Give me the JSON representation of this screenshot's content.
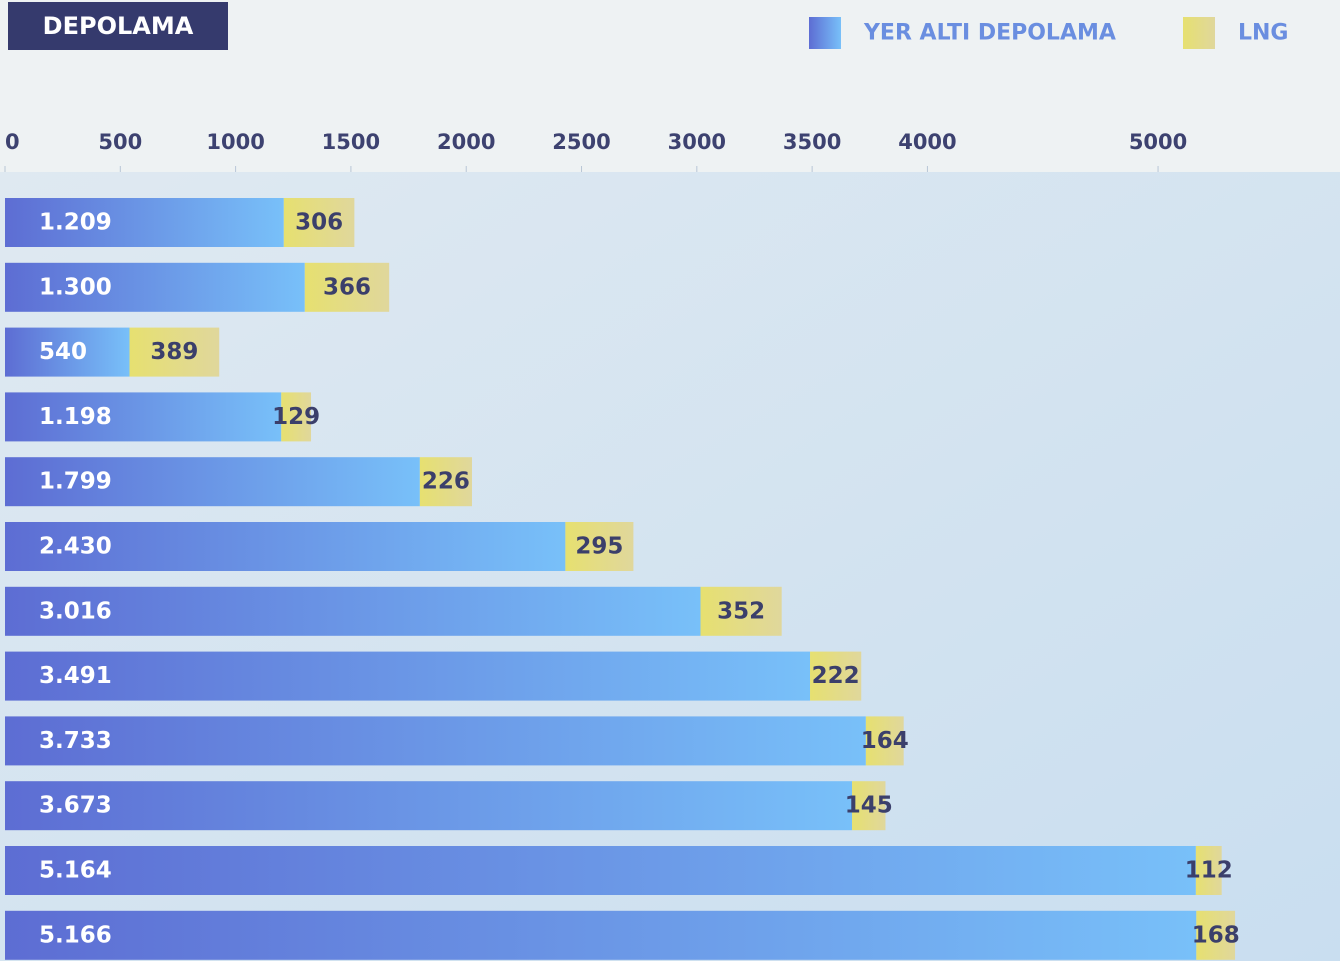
{
  "chart_data": {
    "type": "bar_stacked_horizontal",
    "title": "DEPOLAMA",
    "categories": [
      null,
      null,
      null,
      null,
      null,
      null,
      null,
      null,
      null,
      null,
      null,
      null
    ],
    "series": [
      {
        "name": "YER ALTI DEPOLAMA",
        "color": "#6b8fe6",
        "values": [
          1209,
          1300,
          540,
          1198,
          1799,
          2430,
          3016,
          3491,
          3733,
          3673,
          5164,
          5166
        ],
        "value_labels": [
          "1.209",
          "1.300",
          "540",
          "1.198",
          "1.799",
          "2.430",
          "3.016",
          "3.491",
          "3.733",
          "3.673",
          "5.164",
          "5.166"
        ]
      },
      {
        "name": "LNG",
        "color": "#e2dc7e",
        "values": [
          306,
          366,
          389,
          129,
          226,
          295,
          352,
          222,
          164,
          145,
          112,
          168
        ]
      }
    ],
    "xlim": [
      0,
      5750
    ],
    "xticks": [
      0,
      500,
      1000,
      1500,
      2000,
      2500,
      3000,
      3500,
      4000,
      5000
    ]
  }
}
